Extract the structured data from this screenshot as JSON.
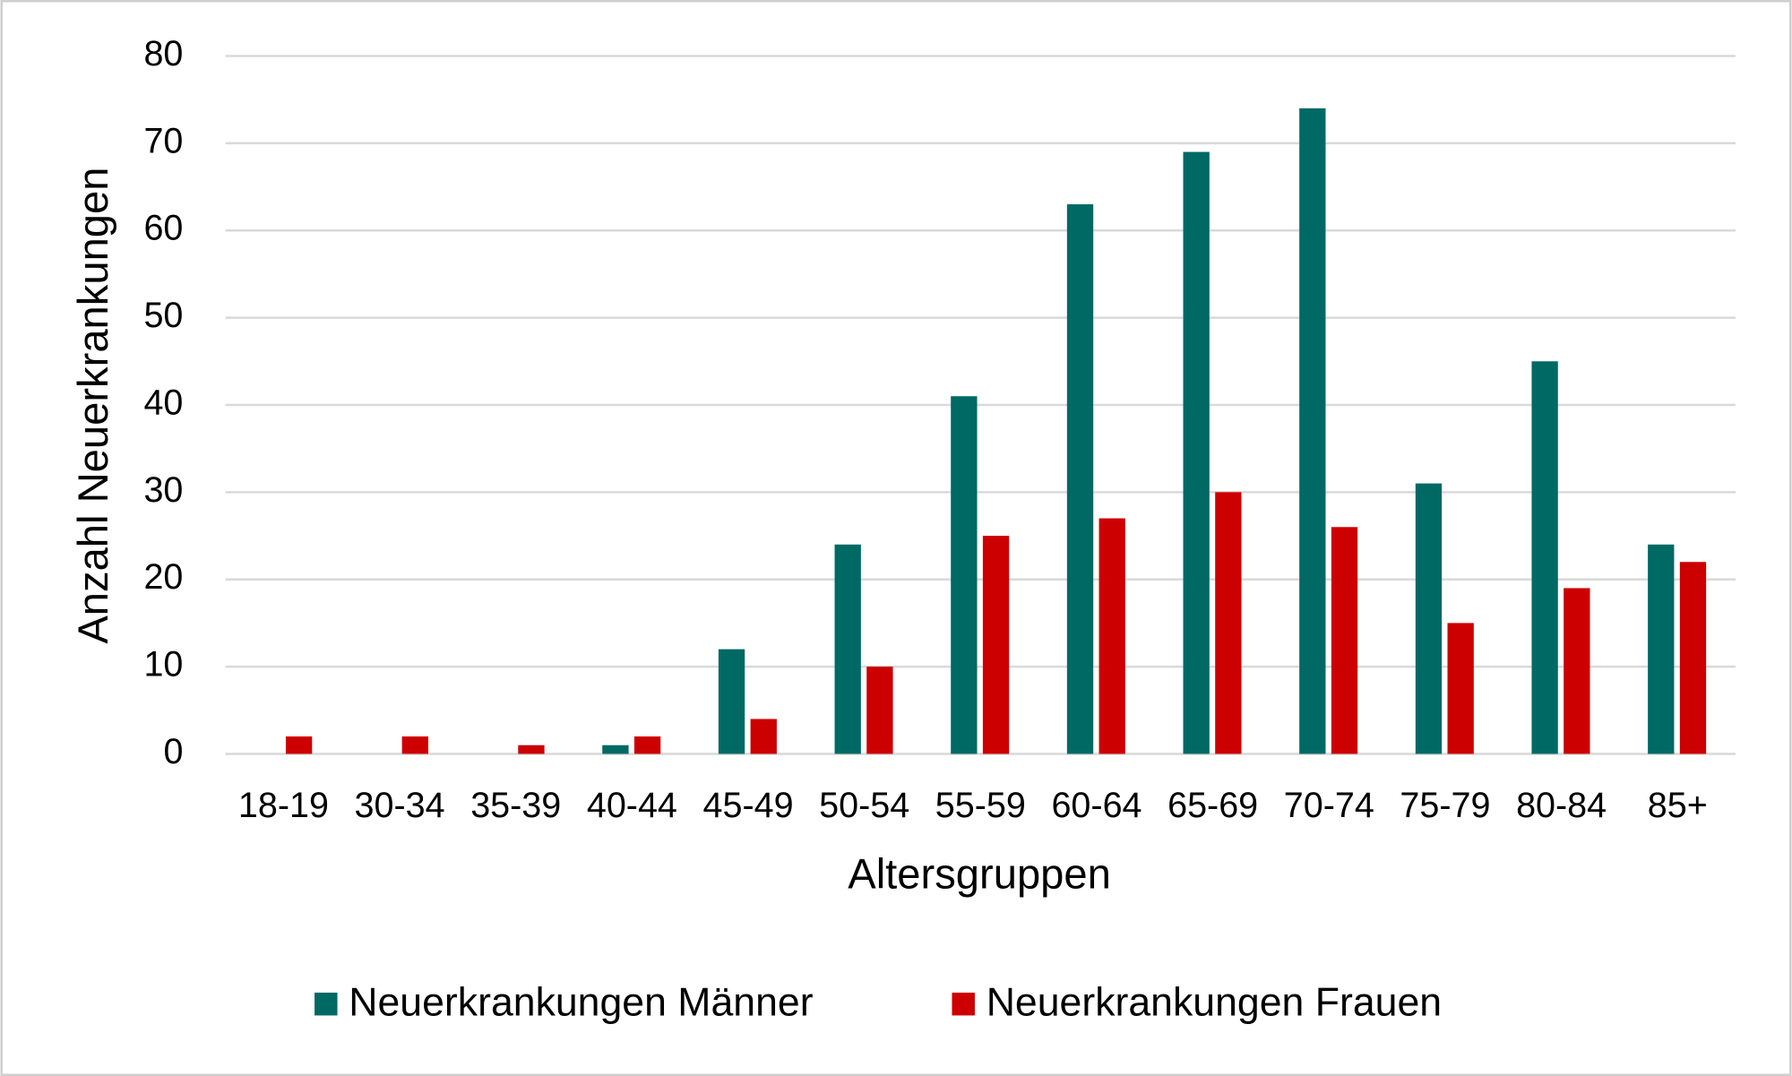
{
  "chart_data": {
    "type": "bar",
    "x_label": "Altersgruppen",
    "y_label": "Anzahl Neuerkrankungen",
    "categories": [
      "18-19",
      "30-34",
      "35-39",
      "40-44",
      "45-49",
      "50-54",
      "55-59",
      "60-64",
      "65-69",
      "70-74",
      "75-79",
      "80-84",
      "85+"
    ],
    "series": [
      {
        "name": "Neuerkrankungen Männer",
        "color": "#006964",
        "values": [
          0,
          0,
          0,
          1,
          12,
          24,
          41,
          63,
          69,
          74,
          31,
          45,
          24
        ]
      },
      {
        "name": "Neuerkrankungen Frauen",
        "color": "#cc0000",
        "values": [
          2,
          2,
          1,
          2,
          4,
          10,
          25,
          27,
          30,
          26,
          15,
          19,
          22
        ]
      }
    ],
    "ylim": [
      0,
      80
    ],
    "yticks": [
      0,
      10,
      20,
      30,
      40,
      50,
      60,
      70,
      80
    ],
    "grid": true,
    "legend": "bottom"
  }
}
